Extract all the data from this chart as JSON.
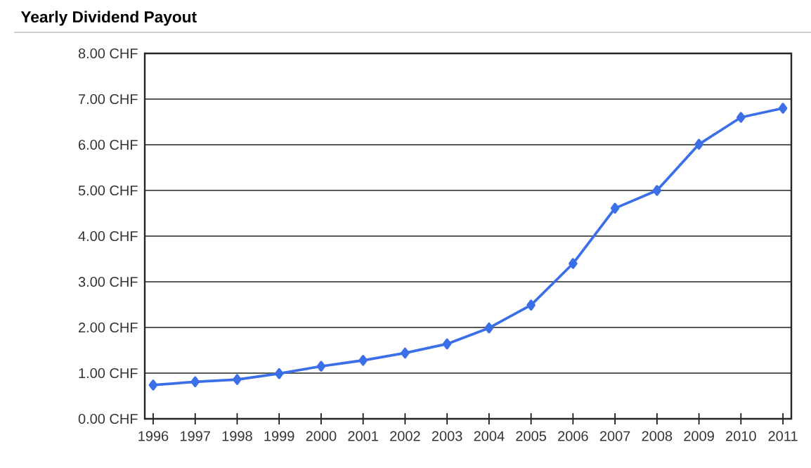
{
  "chart_data": {
    "type": "line",
    "title": "Yearly Dividend Payout",
    "categories": [
      "1996",
      "1997",
      "1998",
      "1999",
      "2000",
      "2001",
      "2002",
      "2003",
      "2004",
      "2005",
      "2006",
      "2007",
      "2008",
      "2009",
      "2010",
      "2011"
    ],
    "series": [
      {
        "color": "#3b6fe8",
        "values": [
          0.74,
          0.81,
          0.86,
          0.99,
          1.15,
          1.28,
          1.44,
          1.64,
          1.99,
          2.49,
          3.4,
          4.61,
          5.0,
          6.01,
          6.6,
          6.8
        ]
      }
    ],
    "ylim": [
      0,
      8
    ],
    "yticks": [
      {
        "value": 0,
        "label": "0.00 CHF"
      },
      {
        "value": 1,
        "label": "1.00 CHF"
      },
      {
        "value": 2,
        "label": "2.00 CHF"
      },
      {
        "value": 3,
        "label": "3.00 CHF"
      },
      {
        "value": 4,
        "label": "4.00 CHF"
      },
      {
        "value": 5,
        "label": "5.00 CHF"
      },
      {
        "value": 6,
        "label": "6.00 CHF"
      },
      {
        "value": 7,
        "label": "7.00 CHF"
      },
      {
        "value": 8,
        "label": "8.00 CHF"
      }
    ],
    "grid": "y",
    "marker": "diamond",
    "line_style": "solid"
  }
}
